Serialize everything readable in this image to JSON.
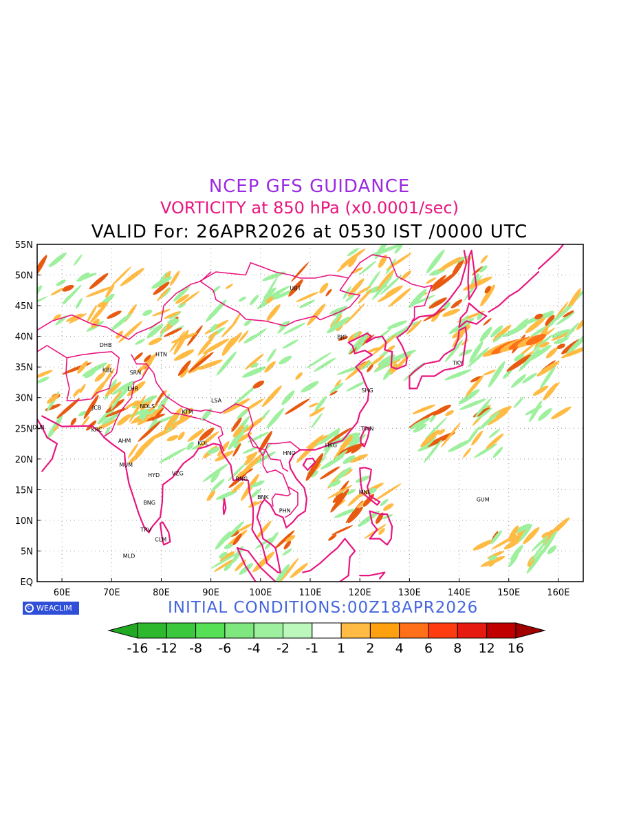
{
  "header": {
    "title": "NCEP GFS GUIDANCE",
    "subtitle": "VORTICITY at 850 hPa (x0.0001/sec)",
    "valid": "VALID For: 26APR2026 at 0530 IST /0000 UTC"
  },
  "footer": {
    "initial_conditions": "INITIAL  CONDITIONS:00Z18APR2026",
    "logo_text": "WEACLIM"
  },
  "map": {
    "lon_range": [
      55,
      165
    ],
    "lat_range": [
      0,
      55
    ],
    "lon_ticks": [
      "60E",
      "70E",
      "80E",
      "90E",
      "100E",
      "110E",
      "120E",
      "130E",
      "140E",
      "150E",
      "160E"
    ],
    "lat_ticks": [
      "EQ",
      "5N",
      "10N",
      "15N",
      "20N",
      "25N",
      "30N",
      "35N",
      "40N",
      "45N",
      "50N",
      "55N"
    ],
    "cities": [
      {
        "code": "UBT",
        "lon": 107.0,
        "lat": 47.9
      },
      {
        "code": "BJG",
        "lon": 116.4,
        "lat": 39.9
      },
      {
        "code": "DHB",
        "lon": 68.8,
        "lat": 38.6
      },
      {
        "code": "HTN",
        "lon": 80.0,
        "lat": 37.1
      },
      {
        "code": "TKY",
        "lon": 139.7,
        "lat": 35.7
      },
      {
        "code": "KBL",
        "lon": 69.2,
        "lat": 34.5
      },
      {
        "code": "SRN",
        "lon": 74.8,
        "lat": 34.1
      },
      {
        "code": "LHR",
        "lon": 74.3,
        "lat": 31.5
      },
      {
        "code": "SHG",
        "lon": 121.5,
        "lat": 31.2
      },
      {
        "code": "LSA",
        "lon": 91.1,
        "lat": 29.6
      },
      {
        "code": "JCB",
        "lon": 67.0,
        "lat": 28.4
      },
      {
        "code": "NDLS",
        "lon": 77.2,
        "lat": 28.6
      },
      {
        "code": "KTM",
        "lon": 85.3,
        "lat": 27.7
      },
      {
        "code": "DUB",
        "lon": 55.3,
        "lat": 25.2
      },
      {
        "code": "KRC",
        "lon": 67.0,
        "lat": 24.8
      },
      {
        "code": "TWN",
        "lon": 121.5,
        "lat": 25.0
      },
      {
        "code": "AHM",
        "lon": 72.6,
        "lat": 23.0
      },
      {
        "code": "KOL",
        "lon": 88.4,
        "lat": 22.6
      },
      {
        "code": "HKG",
        "lon": 114.2,
        "lat": 22.3
      },
      {
        "code": "HNO",
        "lon": 105.8,
        "lat": 21.0
      },
      {
        "code": "MUM",
        "lon": 72.9,
        "lat": 19.1
      },
      {
        "code": "HYD",
        "lon": 78.5,
        "lat": 17.4
      },
      {
        "code": "VZG",
        "lon": 83.3,
        "lat": 17.7
      },
      {
        "code": "RNG",
        "lon": 96.2,
        "lat": 16.8
      },
      {
        "code": "MNL",
        "lon": 121.0,
        "lat": 14.6
      },
      {
        "code": "BNK",
        "lon": 100.5,
        "lat": 13.8
      },
      {
        "code": "GUM",
        "lon": 144.8,
        "lat": 13.4
      },
      {
        "code": "BNG",
        "lon": 77.6,
        "lat": 12.9
      },
      {
        "code": "PHN",
        "lon": 104.9,
        "lat": 11.6
      },
      {
        "code": "TRV",
        "lon": 76.9,
        "lat": 8.5
      },
      {
        "code": "CLM",
        "lon": 79.9,
        "lat": 6.9
      },
      {
        "code": "MLD",
        "lon": 73.5,
        "lat": 4.2
      }
    ]
  },
  "legend": {
    "labels": [
      "-16",
      "-12",
      "-8",
      "-6",
      "-4",
      "-2",
      "-1",
      "1",
      "2",
      "4",
      "6",
      "8",
      "12",
      "16"
    ],
    "colors": [
      "#22a822",
      "#2eb82e",
      "#3cc83c",
      "#55e055",
      "#7ee87e",
      "#9ef09e",
      "#bcf8bc",
      "#ffffff",
      "#ffbb44",
      "#ffa010",
      "#ff7018",
      "#ff3c10",
      "#e61a10",
      "#c00000",
      "#a00000"
    ]
  },
  "colors": {
    "coast": "#e8157f",
    "positive_light": "#ffbb44",
    "positive_dark": "#e85a10",
    "negative": "#9ef09e",
    "grid": "#999999"
  }
}
